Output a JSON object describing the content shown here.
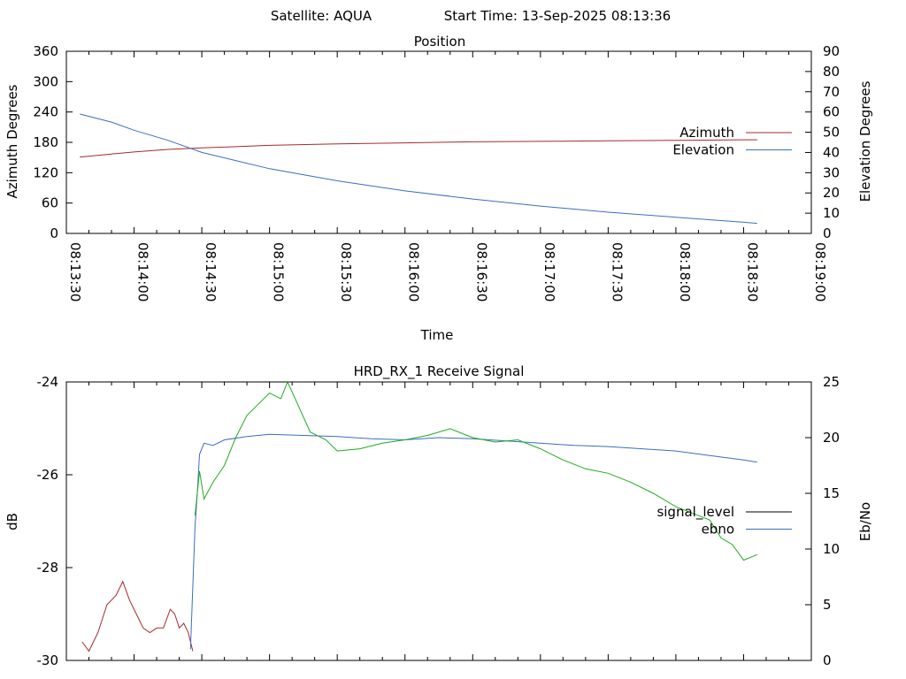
{
  "header": {
    "satellite": "Satellite: AQUA",
    "start_time": "Start Time: 13-Sep-2025 08:13:36"
  },
  "chart_data": [
    {
      "type": "line",
      "title": "Position",
      "xlabel": "Time",
      "ylabel": "Azimuth Degrees",
      "y2label": "Elevation Degrees",
      "x_ticks": [
        "08:13:30",
        "08:14:00",
        "08:14:30",
        "08:15:00",
        "08:15:30",
        "08:16:00",
        "08:16:30",
        "08:17:00",
        "08:17:30",
        "08:18:00",
        "08:18:30",
        "08:19:00"
      ],
      "xlim": [
        "08:13:30",
        "08:19:00"
      ],
      "ylim": [
        0,
        360
      ],
      "y_ticks": [
        "0",
        "60",
        "120",
        "180",
        "240",
        "300",
        "360"
      ],
      "y2lim": [
        0,
        90
      ],
      "y2_ticks": [
        "0",
        "10",
        "20",
        "30",
        "40",
        "50",
        "60",
        "70",
        "80",
        "90"
      ],
      "grid": false,
      "legend_position": "right",
      "series": [
        {
          "name": "Azimuth",
          "axis": "y",
          "color": "#a52a2a",
          "x": [
            "08:13:36",
            "08:13:50",
            "08:14:00",
            "08:14:15",
            "08:14:30",
            "08:15:00",
            "08:15:30",
            "08:16:00",
            "08:16:30",
            "08:17:00",
            "08:17:30",
            "08:18:00",
            "08:18:30",
            "08:18:36"
          ],
          "values": [
            151,
            157,
            161,
            166,
            169,
            174,
            177,
            179,
            181,
            182,
            183,
            184,
            185,
            185
          ]
        },
        {
          "name": "Elevation",
          "axis": "y2",
          "color": "#3a6fbf",
          "x": [
            "08:13:36",
            "08:13:50",
            "08:14:00",
            "08:14:15",
            "08:14:30",
            "08:14:45",
            "08:15:00",
            "08:15:30",
            "08:16:00",
            "08:16:30",
            "08:17:00",
            "08:17:30",
            "08:18:00",
            "08:18:30",
            "08:18:36"
          ],
          "values": [
            59,
            55,
            51,
            46,
            40,
            36,
            32,
            26,
            21,
            17,
            13.5,
            10.5,
            8,
            5.5,
            5
          ]
        }
      ]
    },
    {
      "type": "line",
      "title": "HRD_RX_1 Receive Signal",
      "ylabel": "dB",
      "y2label": "Eb/No",
      "xlim": [
        "08:13:30",
        "08:19:00"
      ],
      "ylim": [
        -30,
        -24
      ],
      "y_ticks": [
        "-30",
        "-28",
        "-26",
        "-24"
      ],
      "y2lim": [
        0,
        25
      ],
      "y2_ticks": [
        "0",
        "5",
        "10",
        "15",
        "20",
        "25"
      ],
      "grid": false,
      "legend_position": "right",
      "legend": [
        {
          "name": "signal_level",
          "color": "#000000"
        },
        {
          "name": "ebno",
          "color": "#3a6fbf"
        }
      ],
      "series": [
        {
          "name": "signal_level (pre-lock)",
          "axis": "y",
          "color": "#a52a2a",
          "x": [
            "08:13:37",
            "08:13:40",
            "08:13:44",
            "08:13:48",
            "08:13:52",
            "08:13:55",
            "08:13:58",
            "08:14:01",
            "08:14:04",
            "08:14:07",
            "08:14:10",
            "08:14:13",
            "08:14:16",
            "08:14:18",
            "08:14:20",
            "08:14:22",
            "08:14:24",
            "08:14:26"
          ],
          "values": [
            -29.6,
            -29.8,
            -29.4,
            -28.8,
            -28.6,
            -28.3,
            -28.7,
            -29.0,
            -29.3,
            -29.4,
            -29.3,
            -29.3,
            -28.9,
            -29.0,
            -29.3,
            -29.2,
            -29.4,
            -29.8
          ]
        },
        {
          "name": "ebno",
          "axis": "y2",
          "color": "#3a6fbf",
          "x": [
            "08:14:25",
            "08:14:27",
            "08:14:28",
            "08:14:29",
            "08:14:31",
            "08:14:35",
            "08:14:40",
            "08:14:50",
            "08:15:00",
            "08:15:15",
            "08:15:30",
            "08:15:45",
            "08:16:00",
            "08:16:15",
            "08:16:30",
            "08:16:45",
            "08:17:00",
            "08:17:15",
            "08:17:30",
            "08:17:45",
            "08:18:00",
            "08:18:15",
            "08:18:30",
            "08:18:36"
          ],
          "values": [
            1,
            12,
            15,
            18.5,
            19.5,
            19.3,
            19.8,
            20.1,
            20.3,
            20.2,
            20.1,
            19.9,
            19.8,
            20.0,
            19.9,
            19.7,
            19.5,
            19.3,
            19.2,
            19.0,
            18.8,
            18.4,
            18.0,
            17.8
          ]
        },
        {
          "name": "ebno (green trace)",
          "axis": "y2",
          "color": "#22aa22",
          "x": [
            "08:14:27",
            "08:14:29",
            "08:14:31",
            "08:14:35",
            "08:14:40",
            "08:14:45",
            "08:14:50",
            "08:14:55",
            "08:15:00",
            "08:15:05",
            "08:15:08",
            "08:15:12",
            "08:15:18",
            "08:15:25",
            "08:15:30",
            "08:15:40",
            "08:15:50",
            "08:16:00",
            "08:16:10",
            "08:16:20",
            "08:16:30",
            "08:16:40",
            "08:16:50",
            "08:17:00",
            "08:17:10",
            "08:17:20",
            "08:17:30",
            "08:17:40",
            "08:17:50",
            "08:18:00",
            "08:18:10",
            "08:18:15",
            "08:18:20",
            "08:18:25",
            "08:18:30",
            "08:18:36"
          ],
          "values": [
            13,
            17,
            14.5,
            16,
            17.5,
            20,
            22,
            23,
            24,
            23.5,
            25,
            23.2,
            20.5,
            19.8,
            18.8,
            19.0,
            19.5,
            19.8,
            20.2,
            20.8,
            20.0,
            19.6,
            19.8,
            19.0,
            18.0,
            17.2,
            16.8,
            16.0,
            15.0,
            13.8,
            13.0,
            12.6,
            11.0,
            10.4,
            9.0,
            9.5
          ]
        }
      ]
    }
  ]
}
